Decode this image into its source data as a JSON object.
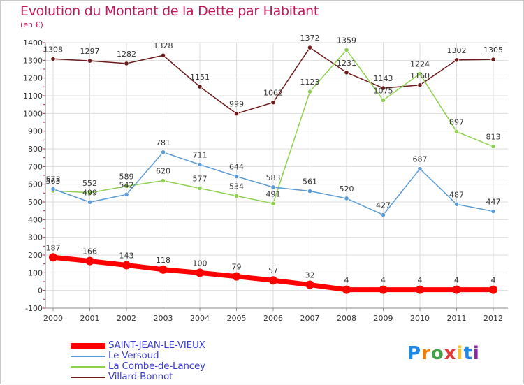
{
  "header": {
    "title": "Evolution du Montant de la Dette par Habitant",
    "unit": "(en €)"
  },
  "brand": {
    "letters": [
      "P",
      "r",
      "o",
      "x",
      "i",
      "t",
      "i"
    ],
    "colors": [
      "#1e88e5",
      "#f57c00",
      "#43a047",
      "#e53935",
      "#fbc02d",
      "#1e88e5",
      "#8e24aa"
    ]
  },
  "chart_data": {
    "type": "line",
    "title": "Evolution du Montant de la Dette par Habitant",
    "ylabel": "(en €)",
    "xlabel": "",
    "ylim": [
      -100,
      1400
    ],
    "yticks": [
      -100,
      0,
      100,
      200,
      300,
      400,
      500,
      600,
      700,
      800,
      900,
      1000,
      1100,
      1200,
      1300,
      1400
    ],
    "categories": [
      "2000",
      "2001",
      "2002",
      "2003",
      "2004",
      "2005",
      "2006",
      "2007",
      "2008",
      "2009",
      "2010",
      "2011",
      "2012"
    ],
    "grid": true,
    "legend_position": "bottom-left",
    "series": [
      {
        "name": "SAINT-JEAN-LE-VIEUX",
        "color": "#ff0000",
        "values": [
          187,
          166,
          143,
          118,
          100,
          79,
          57,
          32,
          4,
          4,
          4,
          4,
          4
        ]
      },
      {
        "name": "Le Versoud",
        "color": "#5b9bd5",
        "values": [
          573,
          499,
          542,
          781,
          711,
          644,
          583,
          561,
          520,
          427,
          687,
          487,
          447
        ]
      },
      {
        "name": "La Combe-de-Lancey",
        "color": "#8fd14f",
        "values": [
          563,
          552,
          589,
          620,
          577,
          534,
          491,
          1123,
          1359,
          1075,
          1224,
          897,
          813
        ]
      },
      {
        "name": "Villard-Bonnot",
        "color": "#6d1a1a",
        "values": [
          1308,
          1297,
          1282,
          1328,
          1151,
          999,
          1062,
          1372,
          1231,
          1143,
          1160,
          1302,
          1305
        ]
      }
    ]
  }
}
